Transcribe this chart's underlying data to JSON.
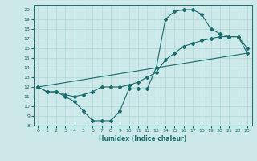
{
  "xlabel": "Humidex (Indice chaleur)",
  "bg_color": "#cce8e8",
  "line_color": "#1a6b6b",
  "grid_color": "#b0d8d8",
  "xlim": [
    -0.5,
    23.5
  ],
  "ylim": [
    8,
    20.5
  ],
  "xticks": [
    0,
    1,
    2,
    3,
    4,
    5,
    6,
    7,
    8,
    9,
    10,
    11,
    12,
    13,
    14,
    15,
    16,
    17,
    18,
    19,
    20,
    21,
    22,
    23
  ],
  "yticks": [
    8,
    9,
    10,
    11,
    12,
    13,
    14,
    15,
    16,
    17,
    18,
    19,
    20
  ],
  "line1_x": [
    0,
    1,
    2,
    3,
    4,
    5,
    6,
    7,
    8,
    9,
    10,
    11,
    12,
    13,
    14,
    15,
    16,
    17,
    18,
    19,
    20,
    21,
    22,
    23
  ],
  "line1_y": [
    12,
    11.5,
    11.5,
    11.0,
    10.5,
    9.5,
    8.5,
    8.5,
    8.5,
    9.5,
    11.8,
    11.8,
    11.8,
    14.0,
    19.0,
    19.8,
    20.0,
    20.0,
    19.5,
    18.0,
    17.5,
    17.2,
    17.2,
    16.0
  ],
  "line2_x": [
    0,
    1,
    2,
    3,
    4,
    5,
    6,
    7,
    8,
    9,
    10,
    11,
    12,
    13,
    14,
    15,
    16,
    17,
    18,
    19,
    20,
    21,
    22,
    23
  ],
  "line2_y": [
    12,
    11.5,
    11.5,
    11.2,
    11.0,
    11.2,
    11.5,
    12.0,
    12.0,
    12.0,
    12.2,
    12.5,
    13.0,
    13.5,
    14.8,
    15.5,
    16.2,
    16.5,
    16.8,
    17.0,
    17.2,
    17.2,
    17.2,
    15.5
  ],
  "line3_x": [
    0,
    23
  ],
  "line3_y": [
    12,
    15.5
  ]
}
